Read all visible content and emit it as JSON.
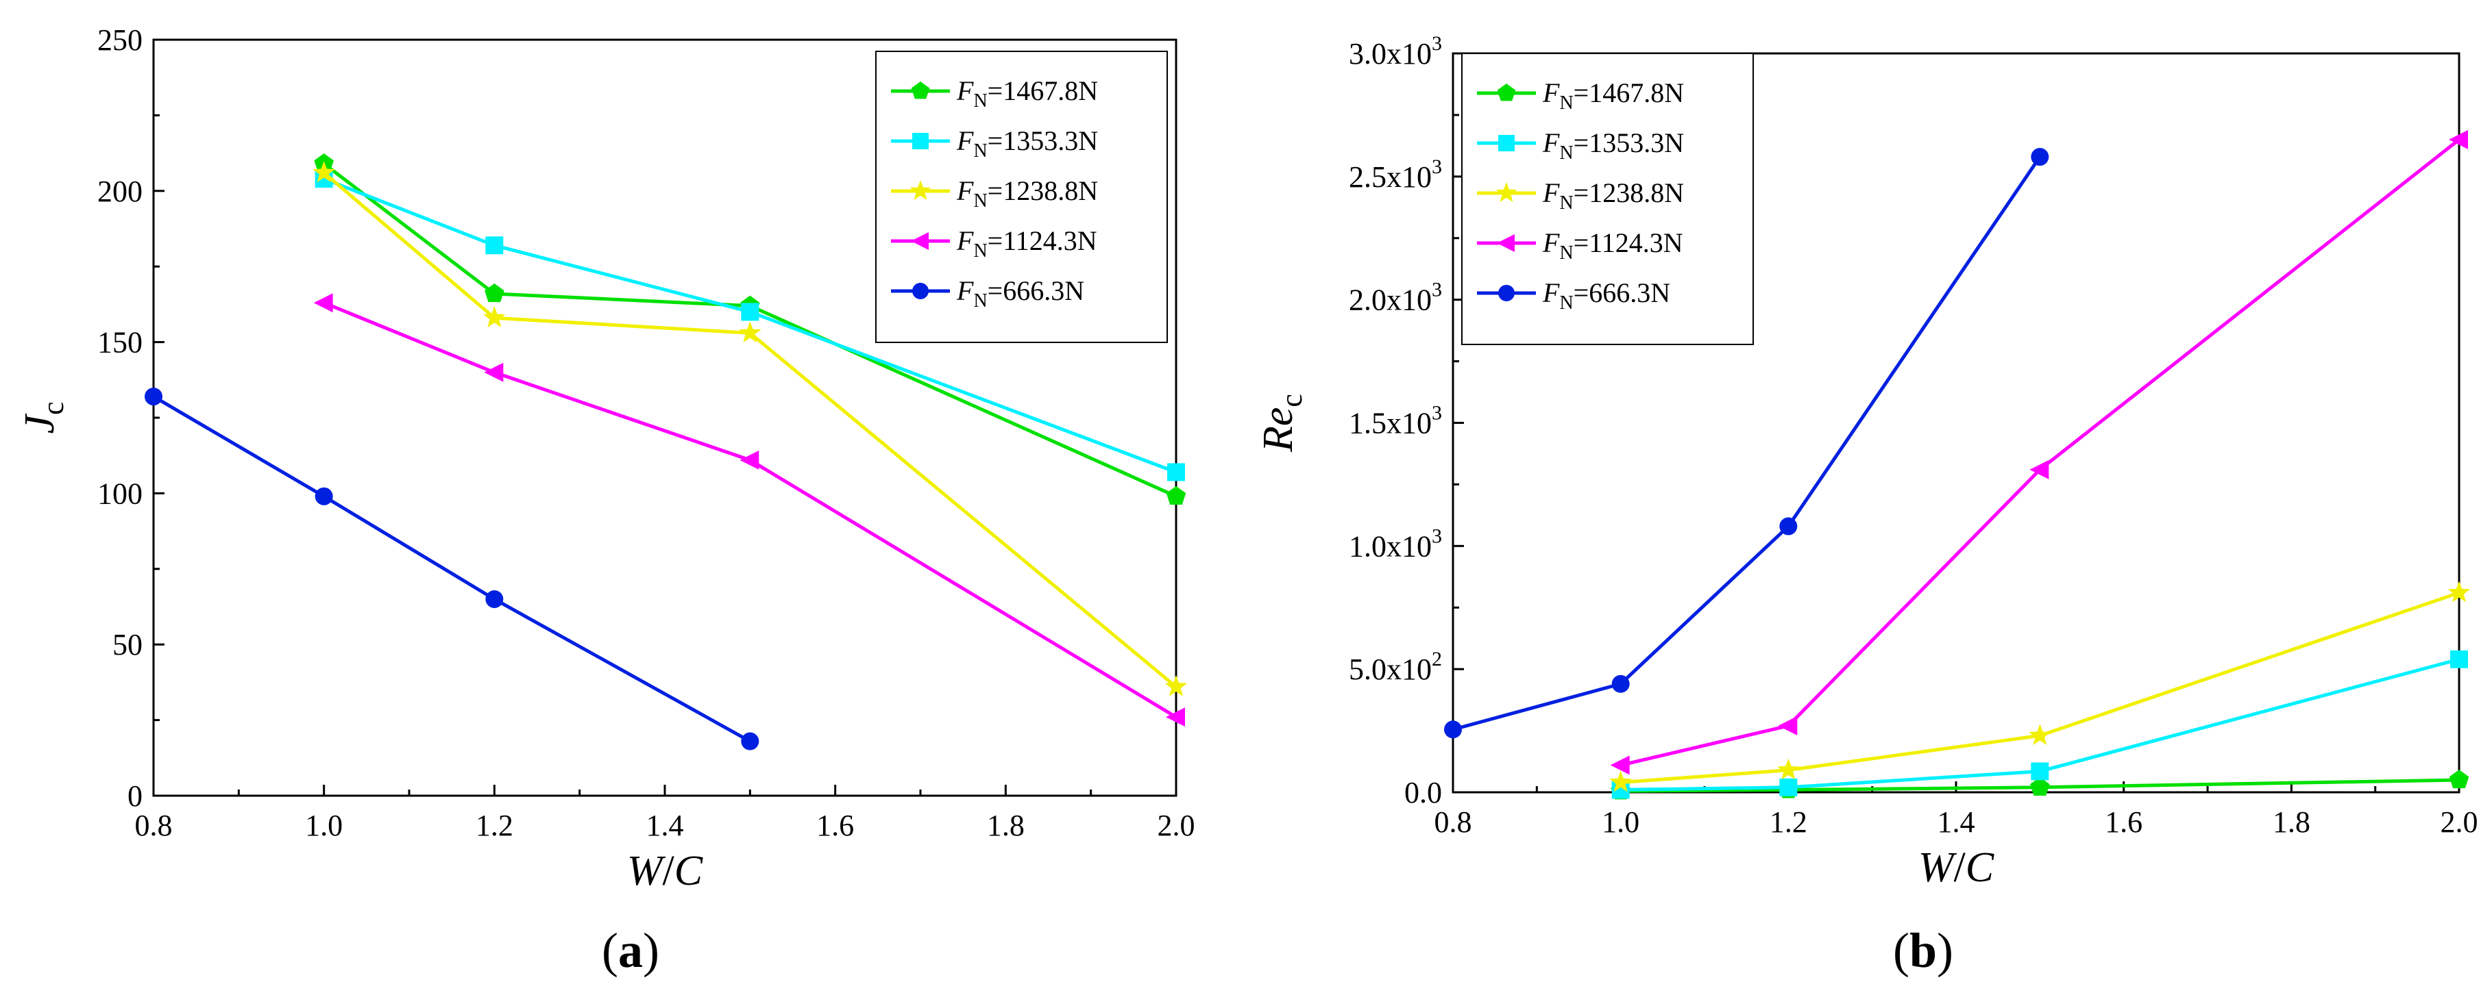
{
  "chart_data": [
    {
      "type": "line",
      "panel_label": "(a)",
      "panel_label_parts": [
        "(",
        "a",
        ")"
      ],
      "xlabel": "W/C",
      "xlabel_parts": [
        "W",
        "/",
        "C"
      ],
      "ylabel": "Jc",
      "ylabel_parts": [
        "J",
        "c"
      ],
      "xlim": [
        0.8,
        2.0
      ],
      "ylim": [
        0,
        250
      ],
      "xticks": [
        0.8,
        1.0,
        1.2,
        1.4,
        1.6,
        1.8,
        2.0
      ],
      "xtick_labels": [
        "0.8",
        "1.0",
        "1.2",
        "1.4",
        "1.6",
        "1.8",
        "2.0"
      ],
      "yticks": [
        0,
        50,
        100,
        150,
        200,
        250
      ],
      "ytick_labels": [
        "0",
        "50",
        "100",
        "150",
        "200",
        "250"
      ],
      "legend_position": "top-right",
      "series": [
        {
          "name": "FN=1467.8N",
          "label_prefix": "F",
          "label_sub": "N",
          "label_suffix": "=1467.8N",
          "color": "#00e000",
          "marker": "pentagon",
          "x": [
            1.0,
            1.2,
            1.5,
            2.0
          ],
          "y": [
            209,
            166,
            162,
            99
          ]
        },
        {
          "name": "FN=1353.3N",
          "label_prefix": "F",
          "label_sub": "N",
          "label_suffix": "=1353.3N",
          "color": "#00f0ff",
          "marker": "square",
          "x": [
            1.0,
            1.2,
            1.5,
            2.0
          ],
          "y": [
            204,
            182,
            160,
            107
          ]
        },
        {
          "name": "FN=1238.8N",
          "label_prefix": "F",
          "label_sub": "N",
          "label_suffix": "=1238.8N",
          "color": "#f0f000",
          "marker": "star",
          "x": [
            1.0,
            1.2,
            1.5,
            2.0
          ],
          "y": [
            206,
            158,
            153,
            36
          ]
        },
        {
          "name": "FN=1124.3N",
          "label_prefix": "F",
          "label_sub": "N",
          "label_suffix": "=1124.3N",
          "color": "#ff00ff",
          "marker": "triangle-left",
          "x": [
            1.0,
            1.2,
            1.5,
            2.0
          ],
          "y": [
            163,
            140,
            111,
            26
          ]
        },
        {
          "name": "FN=666.3N",
          "label_prefix": "F",
          "label_sub": "N",
          "label_suffix": "=666.3N",
          "color": "#0020e0",
          "marker": "circle",
          "x": [
            0.8,
            1.0,
            1.2,
            1.5
          ],
          "y": [
            132,
            99,
            65,
            18
          ]
        }
      ]
    },
    {
      "type": "line",
      "panel_label": "(b)",
      "panel_label_parts": [
        "(",
        "b",
        ")"
      ],
      "xlabel": "W/C",
      "xlabel_parts": [
        "W",
        "/",
        "C"
      ],
      "ylabel": "Rec",
      "ylabel_parts": [
        "Re",
        "c"
      ],
      "xlim": [
        0.8,
        2.0
      ],
      "ylim": [
        0,
        3000
      ],
      "xticks": [
        0.8,
        1.0,
        1.2,
        1.4,
        1.6,
        1.8,
        2.0
      ],
      "xtick_labels": [
        "0.8",
        "1.0",
        "1.2",
        "1.4",
        "1.6",
        "1.8",
        "2.0"
      ],
      "yticks": [
        0,
        500,
        1000,
        1500,
        2000,
        2500,
        3000
      ],
      "ytick_labels": [
        "0.0",
        "5.0x10",
        "1.0x10",
        "1.5x10",
        "2.0x10",
        "2.5x10",
        "3.0x10"
      ],
      "ytick_exponents": [
        "",
        "2",
        "3",
        "3",
        "3",
        "3",
        "3"
      ],
      "legend_position": "top-left",
      "series": [
        {
          "name": "FN=1467.8N",
          "label_prefix": "F",
          "label_sub": "N",
          "label_suffix": "=1467.8N",
          "color": "#00e000",
          "marker": "pentagon",
          "x": [
            1.0,
            1.2,
            1.5,
            2.0
          ],
          "y": [
            5,
            10,
            20,
            50
          ]
        },
        {
          "name": "FN=1353.3N",
          "label_prefix": "F",
          "label_sub": "N",
          "label_suffix": "=1353.3N",
          "color": "#00f0ff",
          "marker": "square",
          "x": [
            1.0,
            1.2,
            1.5,
            2.0
          ],
          "y": [
            10,
            20,
            85,
            540
          ]
        },
        {
          "name": "FN=1238.8N",
          "label_prefix": "F",
          "label_sub": "N",
          "label_suffix": "=1238.8N",
          "color": "#f0f000",
          "marker": "star",
          "x": [
            1.0,
            1.2,
            1.5,
            2.0
          ],
          "y": [
            40,
            90,
            230,
            810
          ]
        },
        {
          "name": "FN=1124.3N",
          "label_prefix": "F",
          "label_sub": "N",
          "label_suffix": "=1124.3N",
          "color": "#ff00ff",
          "marker": "triangle-left",
          "x": [
            1.0,
            1.2,
            1.5,
            2.0
          ],
          "y": [
            110,
            270,
            1310,
            2650
          ]
        },
        {
          "name": "FN=666.3N",
          "label_prefix": "F",
          "label_sub": "N",
          "label_suffix": "=666.3N",
          "color": "#0020e0",
          "marker": "circle",
          "x": [
            0.8,
            1.0,
            1.2,
            1.5
          ],
          "y": [
            255,
            440,
            1080,
            2580
          ]
        }
      ]
    }
  ]
}
